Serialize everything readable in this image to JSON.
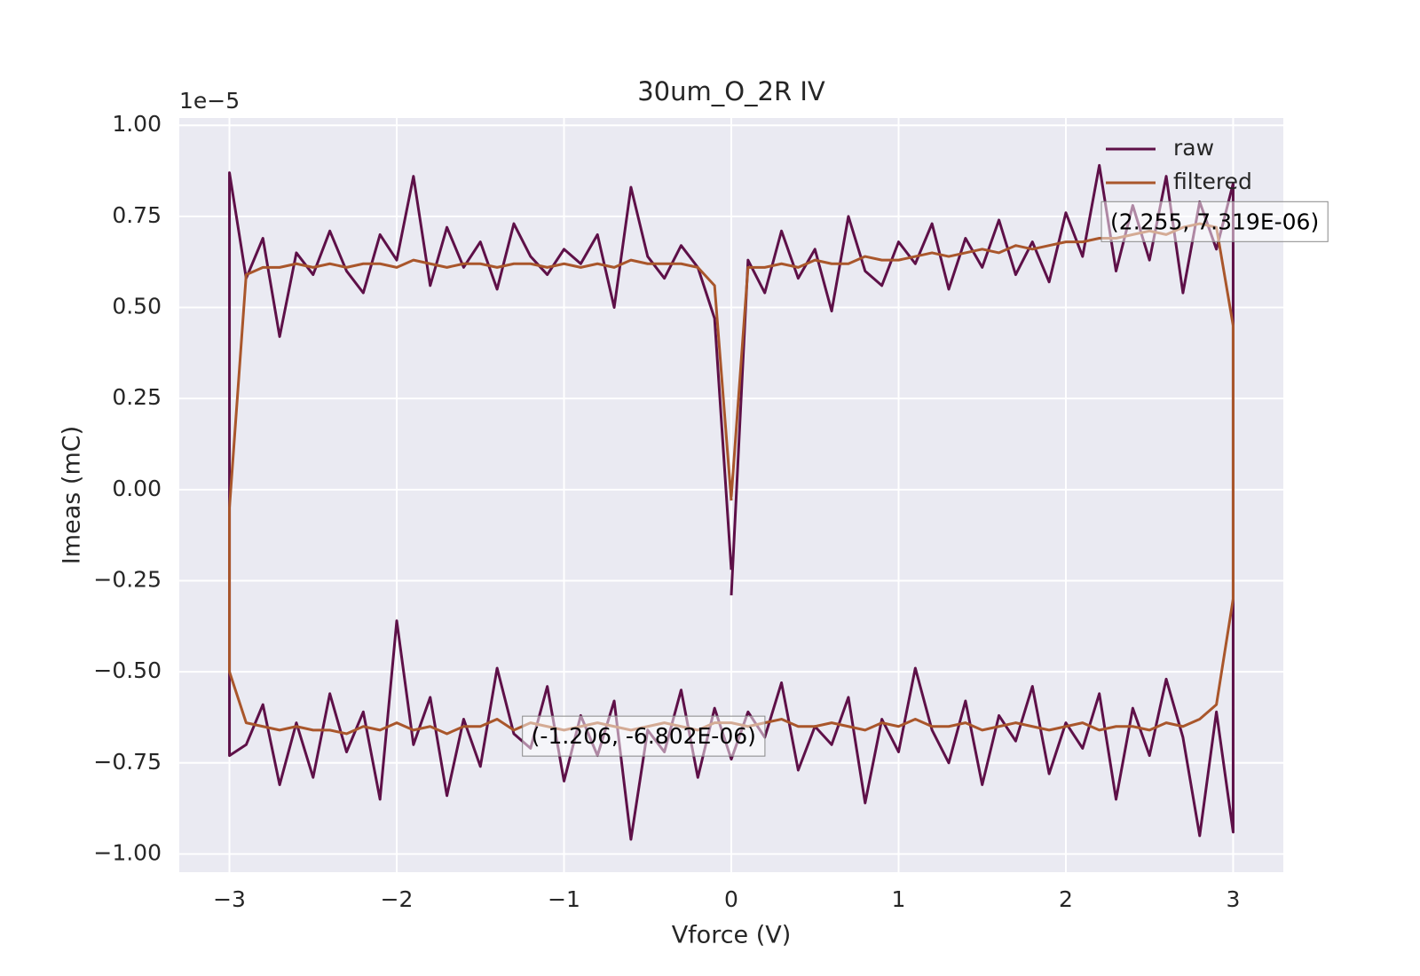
{
  "chart_data": {
    "type": "line",
    "title": "30um_O_2R IV",
    "x_label": "Vforce (V)",
    "y_label": "Imeas (mC)",
    "y_offset_label": "1e−5",
    "xlim": [
      -3.3,
      3.3
    ],
    "ylim": [
      -1.05e-05,
      1.02e-05
    ],
    "xticks": [
      {
        "value": -3,
        "label": "−3"
      },
      {
        "value": -2,
        "label": "−2"
      },
      {
        "value": -1,
        "label": "−1"
      },
      0,
      1,
      2,
      3
    ],
    "yticks": [
      {
        "value": -1e-05,
        "label": "−1.00"
      },
      {
        "value": -7.5e-06,
        "label": "−0.75"
      },
      {
        "value": -5e-06,
        "label": "−0.50"
      },
      {
        "value": -2.5e-06,
        "label": "−0.25"
      },
      {
        "value": 0,
        "label": "0.00"
      },
      {
        "value": 2.5e-06,
        "label": "0.25"
      },
      {
        "value": 5e-06,
        "label": "0.50"
      },
      {
        "value": 7.5e-06,
        "label": "0.75"
      },
      {
        "value": 1e-05,
        "label": "1.00"
      }
    ],
    "grid": true,
    "legend_position": "upper right",
    "x": [
      0,
      0.1,
      0.2,
      0.3,
      0.4,
      0.5,
      0.6,
      0.7,
      0.8,
      0.9,
      1.0,
      1.1,
      1.2,
      1.3,
      1.4,
      1.5,
      1.6,
      1.7,
      1.8,
      1.9,
      2.0,
      2.1,
      2.2,
      2.3,
      2.4,
      2.5,
      2.6,
      2.7,
      2.8,
      2.9,
      3.0,
      3.0,
      2.9,
      2.8,
      2.7,
      2.6,
      2.5,
      2.4,
      2.3,
      2.2,
      2.1,
      2.0,
      1.9,
      1.8,
      1.7,
      1.6,
      1.5,
      1.4,
      1.3,
      1.2,
      1.1,
      1.0,
      0.9,
      0.8,
      0.7,
      0.6,
      0.5,
      0.4,
      0.3,
      0.2,
      0.1,
      0.0,
      -0.1,
      -0.2,
      -0.3,
      -0.4,
      -0.5,
      -0.6,
      -0.7,
      -0.8,
      -0.9,
      -1.0,
      -1.1,
      -1.2,
      -1.3,
      -1.4,
      -1.5,
      -1.6,
      -1.7,
      -1.8,
      -1.9,
      -2.0,
      -2.1,
      -2.2,
      -2.3,
      -2.4,
      -2.5,
      -2.6,
      -2.7,
      -2.8,
      -2.9,
      -3.0,
      -3.0,
      -2.9,
      -2.8,
      -2.7,
      -2.6,
      -2.5,
      -2.4,
      -2.3,
      -2.2,
      -2.1,
      -2.0,
      -1.9,
      -1.8,
      -1.7,
      -1.6,
      -1.5,
      -1.4,
      -1.3,
      -1.2,
      -1.1,
      -1.0,
      -0.9,
      -0.8,
      -0.7,
      -0.6,
      -0.5,
      -0.4,
      -0.3,
      -0.2,
      -0.1,
      0.0
    ],
    "series": [
      {
        "name": "raw",
        "color": "#5e1048",
        "values": [
          -2.9e-06,
          6.3e-06,
          5.4e-06,
          7.1e-06,
          5.8e-06,
          6.6e-06,
          4.9e-06,
          7.5e-06,
          6e-06,
          5.6e-06,
          6.8e-06,
          6.2e-06,
          7.3e-06,
          5.5e-06,
          6.9e-06,
          6.1e-06,
          7.4e-06,
          5.9e-06,
          6.8e-06,
          5.7e-06,
          7.6e-06,
          6.4e-06,
          8.9e-06,
          6e-06,
          7.8e-06,
          6.3e-06,
          8.6e-06,
          5.4e-06,
          7.9e-06,
          6.6e-06,
          8.4e-06,
          -9.4e-06,
          -6.1e-06,
          -9.5e-06,
          -6.8e-06,
          -5.2e-06,
          -7.3e-06,
          -6e-06,
          -8.5e-06,
          -5.6e-06,
          -7.1e-06,
          -6.4e-06,
          -7.8e-06,
          -5.4e-06,
          -6.9e-06,
          -6.2e-06,
          -8.1e-06,
          -5.8e-06,
          -7.5e-06,
          -6.6e-06,
          -4.9e-06,
          -7.2e-06,
          -6.3e-06,
          -8.6e-06,
          -5.7e-06,
          -7e-06,
          -6.5e-06,
          -7.7e-06,
          -5.3e-06,
          -6.8e-06,
          -6.1e-06,
          -7.4e-06,
          -6e-06,
          -7.9e-06,
          -5.5e-06,
          -7.2e-06,
          -6.6e-06,
          -9.6e-06,
          -5.8e-06,
          -7.3e-06,
          -6.2e-06,
          -8e-06,
          -5.4e-06,
          -7.1e-06,
          -6.7e-06,
          -4.9e-06,
          -7.6e-06,
          -6.3e-06,
          -8.4e-06,
          -5.7e-06,
          -7e-06,
          -3.6e-06,
          -8.5e-06,
          -6.1e-06,
          -7.2e-06,
          -5.6e-06,
          -7.9e-06,
          -6.4e-06,
          -8.1e-06,
          -5.9e-06,
          -7e-06,
          -7.3e-06,
          8.7e-06,
          5.8e-06,
          6.9e-06,
          4.2e-06,
          6.5e-06,
          5.9e-06,
          7.1e-06,
          6e-06,
          5.4e-06,
          7e-06,
          6.3e-06,
          8.6e-06,
          5.6e-06,
          7.2e-06,
          6.1e-06,
          6.8e-06,
          5.5e-06,
          7.3e-06,
          6.4e-06,
          5.9e-06,
          6.6e-06,
          6.2e-06,
          7e-06,
          5e-06,
          8.3e-06,
          6.4e-06,
          5.8e-06,
          6.7e-06,
          6.1e-06,
          4.7e-06,
          -2.2e-06
        ]
      },
      {
        "name": "filtered",
        "color": "#a9562b",
        "values": [
          -2e-07,
          6.1e-06,
          6.1e-06,
          6.2e-06,
          6.1e-06,
          6.3e-06,
          6.2e-06,
          6.2e-06,
          6.4e-06,
          6.3e-06,
          6.3e-06,
          6.4e-06,
          6.5e-06,
          6.4e-06,
          6.5e-06,
          6.6e-06,
          6.5e-06,
          6.7e-06,
          6.6e-06,
          6.7e-06,
          6.8e-06,
          6.8e-06,
          6.9e-06,
          6.9e-06,
          7e-06,
          7.1e-06,
          7e-06,
          7.2e-06,
          7.3e-06,
          7.2e-06,
          4.5e-06,
          -3e-06,
          -5.9e-06,
          -6.3e-06,
          -6.5e-06,
          -6.4e-06,
          -6.6e-06,
          -6.5e-06,
          -6.5e-06,
          -6.6e-06,
          -6.4e-06,
          -6.5e-06,
          -6.6e-06,
          -6.5e-06,
          -6.4e-06,
          -6.5e-06,
          -6.6e-06,
          -6.4e-06,
          -6.5e-06,
          -6.5e-06,
          -6.3e-06,
          -6.5e-06,
          -6.4e-06,
          -6.6e-06,
          -6.5e-06,
          -6.4e-06,
          -6.5e-06,
          -6.5e-06,
          -6.3e-06,
          -6.4e-06,
          -6.5e-06,
          -6.4e-06,
          -6.4e-06,
          -6.6e-06,
          -6.5e-06,
          -6.4e-06,
          -6.5e-06,
          -6.6e-06,
          -6.5e-06,
          -6.4e-06,
          -6.5e-06,
          -6.6e-06,
          -6.5e-06,
          -6.4e-06,
          -6.6e-06,
          -6.3e-06,
          -6.5e-06,
          -6.5e-06,
          -6.7e-06,
          -6.5e-06,
          -6.6e-06,
          -6.4e-06,
          -6.6e-06,
          -6.5e-06,
          -6.7e-06,
          -6.6e-06,
          -6.6e-06,
          -6.5e-06,
          -6.6e-06,
          -6.5e-06,
          -6.4e-06,
          -5e-06,
          -5e-07,
          5.9e-06,
          6.1e-06,
          6.1e-06,
          6.2e-06,
          6.1e-06,
          6.2e-06,
          6.1e-06,
          6.2e-06,
          6.2e-06,
          6.1e-06,
          6.3e-06,
          6.2e-06,
          6.1e-06,
          6.2e-06,
          6.2e-06,
          6.1e-06,
          6.2e-06,
          6.2e-06,
          6.1e-06,
          6.2e-06,
          6.1e-06,
          6.2e-06,
          6.1e-06,
          6.3e-06,
          6.2e-06,
          6.2e-06,
          6.2e-06,
          6.1e-06,
          5.6e-06,
          -3e-07
        ]
      }
    ],
    "annotations": [
      {
        "text": "(2.255, 7.319E-06)",
        "x": 2.255,
        "y": 7.319e-06
      },
      {
        "text": "(-1.206, -6.802E-06)",
        "x": -1.206,
        "y": -6.802e-06
      }
    ]
  }
}
